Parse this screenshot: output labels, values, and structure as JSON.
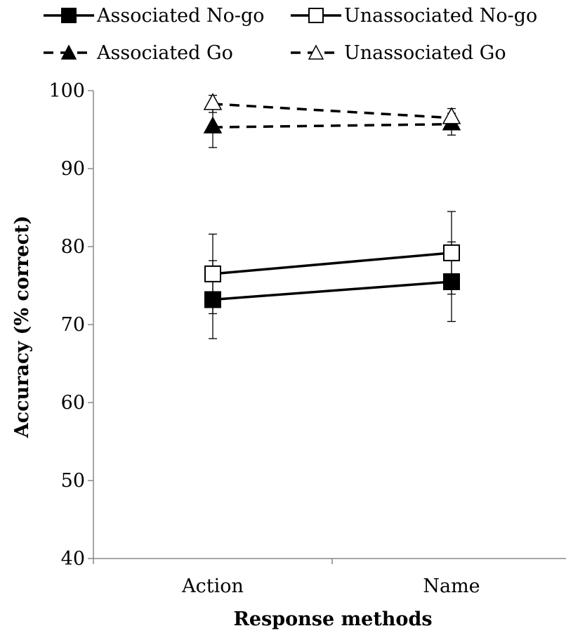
{
  "chart_data": {
    "type": "line",
    "title": "",
    "xlabel": "Response methods",
    "ylabel": "Accuracy (% correct)",
    "categories": [
      "Action",
      "Name"
    ],
    "ylim": [
      40,
      100
    ],
    "yticks": [
      40,
      50,
      60,
      70,
      80,
      90,
      100
    ],
    "grid": false,
    "legend_position": "top",
    "series": [
      {
        "name": "Associated No-go",
        "values": [
          73.2,
          75.5
        ],
        "error": [
          5.0,
          5.1
        ],
        "line": "solid",
        "marker": "square",
        "marker_fill": "#000000"
      },
      {
        "name": "Unassociated No-go",
        "values": [
          76.5,
          79.2
        ],
        "error": [
          5.1,
          5.3
        ],
        "line": "solid",
        "marker": "square",
        "marker_fill": "#ffffff"
      },
      {
        "name": "Associated Go",
        "values": [
          95.3,
          95.7
        ],
        "error": [
          2.6,
          1.4
        ],
        "line": "dashed",
        "marker": "triangle",
        "marker_fill": "#000000"
      },
      {
        "name": "Unassociated Go",
        "values": [
          98.3,
          96.5
        ],
        "error": [
          1.1,
          1.2
        ],
        "line": "dashed",
        "marker": "triangle",
        "marker_fill": "#ffffff"
      }
    ]
  }
}
